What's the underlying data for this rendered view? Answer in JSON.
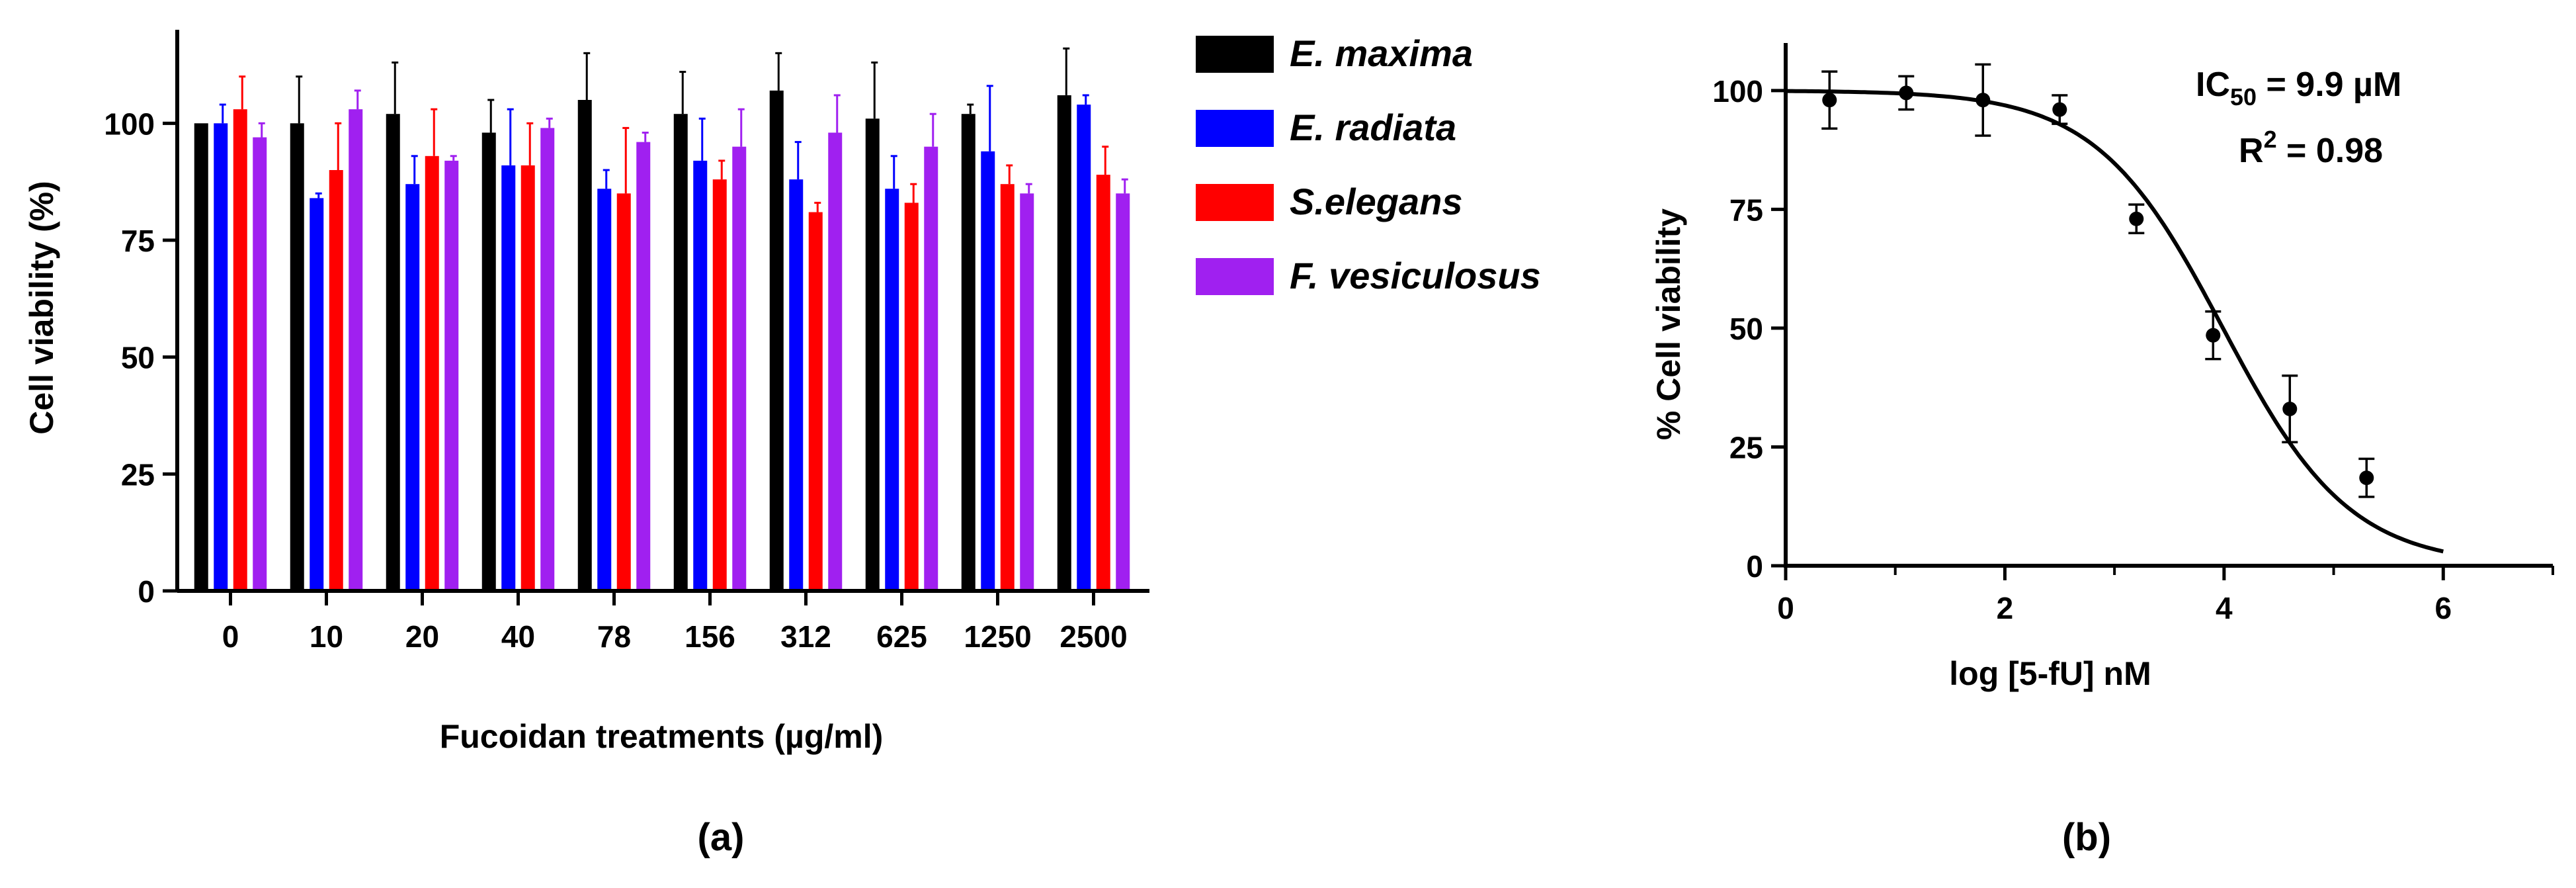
{
  "panels": {
    "a_label": "(a)",
    "b_label": "(b)"
  },
  "chart_data": [
    {
      "type": "bar",
      "panel": "(a)",
      "xlabel": "Fucoidan treatments (µg/ml)",
      "ylabel": "Cell viability (%)",
      "ylim": [
        0,
        120
      ],
      "yticks": [
        0,
        25,
        50,
        75,
        100
      ],
      "categories": [
        "0",
        "10",
        "20",
        "40",
        "78",
        "156",
        "312",
        "625",
        "1250",
        "2500"
      ],
      "legend_position": "right",
      "series": [
        {
          "name": "E. maxima",
          "color": "#000000",
          "values": [
            100,
            100,
            102,
            98,
            105,
            102,
            107,
            101,
            102,
            106
          ],
          "errors": [
            0,
            10,
            11,
            7,
            10,
            9,
            8,
            12,
            2,
            10
          ]
        },
        {
          "name": "E. radiata",
          "color": "#0000ff",
          "values": [
            100,
            84,
            87,
            91,
            86,
            92,
            88,
            86,
            94,
            104
          ],
          "errors": [
            4,
            1,
            6,
            12,
            4,
            9,
            8,
            7,
            14,
            2
          ]
        },
        {
          "name": "S.elegans",
          "color": "#ff0000",
          "values": [
            103,
            90,
            93,
            91,
            85,
            88,
            81,
            83,
            87,
            89
          ],
          "errors": [
            7,
            10,
            10,
            9,
            14,
            4,
            2,
            4,
            4,
            6
          ]
        },
        {
          "name": "F. vesiculosus",
          "color": "#a020f0",
          "values": [
            97,
            103,
            92,
            99,
            96,
            95,
            98,
            95,
            85,
            85
          ],
          "errors": [
            3,
            4,
            1,
            2,
            2,
            8,
            8,
            7,
            2,
            3
          ]
        }
      ]
    },
    {
      "type": "scatter",
      "panel": "(b)",
      "xlabel": "log [5-fU] nM",
      "ylabel": "% Cell viability",
      "xlim": [
        0,
        7
      ],
      "ylim": [
        0,
        110
      ],
      "xticks": [
        0,
        2,
        4,
        6
      ],
      "yticks": [
        0,
        25,
        50,
        75,
        100
      ],
      "points": [
        {
          "x": 0.4,
          "y": 98,
          "err": 6
        },
        {
          "x": 1.1,
          "y": 99.5,
          "err": 3.5
        },
        {
          "x": 1.8,
          "y": 98,
          "err": 7.5
        },
        {
          "x": 2.5,
          "y": 96,
          "err": 3
        },
        {
          "x": 3.2,
          "y": 73,
          "err": 3
        },
        {
          "x": 3.9,
          "y": 48.5,
          "err": 5
        },
        {
          "x": 4.6,
          "y": 33,
          "err": 7
        },
        {
          "x": 5.3,
          "y": 18.5,
          "err": 4
        }
      ],
      "fit": {
        "top": 100,
        "bottom": 0,
        "logIC50": 3.99,
        "hill": 0.75,
        "x_end": 6
      },
      "annotation": {
        "ic50_label": "IC",
        "ic50_sub": "50",
        "ic50_value": " = 9.9 µM",
        "r2_label": "R",
        "r2_sup": "2",
        "r2_value": " =  0.98"
      }
    }
  ]
}
